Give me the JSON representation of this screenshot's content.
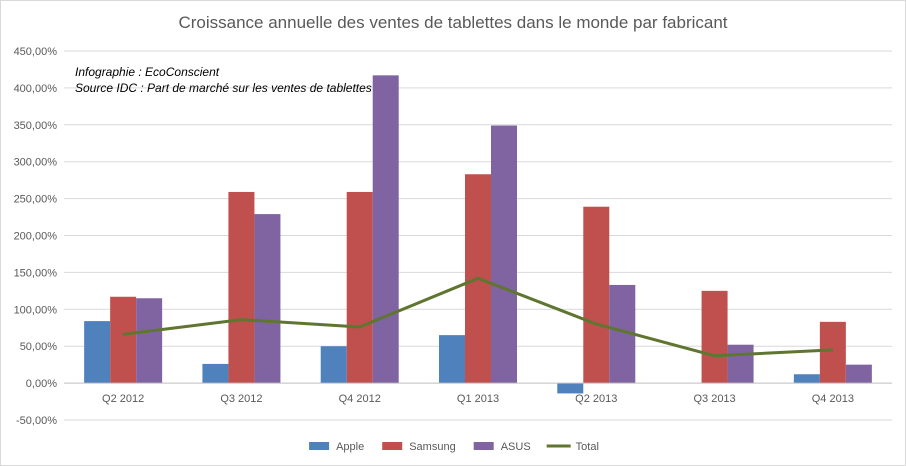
{
  "chart_data": {
    "type": "bar",
    "title": "Croissance annuelle des ventes de tablettes dans le monde par fabricant",
    "annotations": [
      "Infographie : EcoConscient",
      "Source IDC : Part de marché  sur les ventes  de tablettes"
    ],
    "categories": [
      "Q2 2012",
      "Q3 2012",
      "Q4 2012",
      "Q1 2013",
      "Q2 2013",
      "Q3 2013",
      "Q4 2013"
    ],
    "series": [
      {
        "name": "Apple",
        "type": "bar",
        "color": "#4f81bd",
        "values": [
          84,
          26,
          50,
          65,
          -14,
          0,
          12
        ]
      },
      {
        "name": "Samsung",
        "type": "bar",
        "color": "#c0504d",
        "values": [
          117,
          259,
          259,
          283,
          239,
          125,
          83
        ]
      },
      {
        "name": "ASUS",
        "type": "bar",
        "color": "#8064a2",
        "values": [
          115,
          229,
          417,
          349,
          133,
          52,
          25
        ]
      },
      {
        "name": "Total",
        "type": "line",
        "color": "#5f7530",
        "values": [
          66,
          86,
          76,
          142,
          80,
          37,
          45
        ]
      }
    ],
    "ylim": [
      -50,
      450
    ],
    "yticks": [
      -50,
      0,
      50,
      100,
      150,
      200,
      250,
      300,
      350,
      400,
      450
    ],
    "ytick_labels": [
      "-50,00%",
      "0,00%",
      "50,00%",
      "100,00%",
      "150,00%",
      "200,00%",
      "250,00%",
      "300,00%",
      "350,00%",
      "400,00%",
      "450,00%"
    ],
    "grid": true,
    "legend_position": "bottom",
    "grid_color": "#d9d9d9",
    "axis_color": "#bfbfbf",
    "text_color": "#595959"
  }
}
